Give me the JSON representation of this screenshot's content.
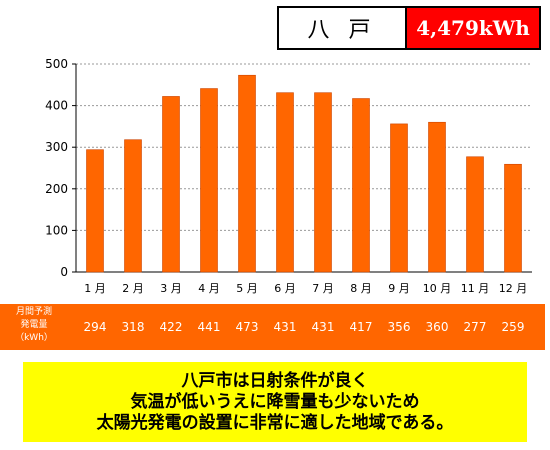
{
  "header": {
    "city": "八 戸",
    "total": "4,479kWh"
  },
  "chart_data": {
    "type": "bar",
    "categories": [
      "1 月",
      "2 月",
      "3 月",
      "4 月",
      "5 月",
      "6 月",
      "7 月",
      "8 月",
      "9 月",
      "10 月",
      "11 月",
      "12 月"
    ],
    "values": [
      294,
      318,
      422,
      441,
      473,
      431,
      431,
      417,
      356,
      360,
      277,
      259
    ],
    "ylim": [
      0,
      500
    ],
    "yticks": [
      0,
      100,
      200,
      300,
      400,
      500
    ],
    "grid": true,
    "bar_color": "#ff6600",
    "title": "",
    "xlabel": "",
    "ylabel": ""
  },
  "data_row": {
    "label_lines": [
      "月間予測",
      "発電量",
      "（kWh）"
    ],
    "values": [
      "294",
      "318",
      "422",
      "441",
      "473",
      "431",
      "431",
      "417",
      "356",
      "360",
      "277",
      "259"
    ]
  },
  "message": {
    "lines": [
      "八戸市は日射条件が良く",
      "気温が低いうえに降雪量も少ないため",
      "太陽光発電の設置に非常に適した地域である。"
    ]
  },
  "colors": {
    "accent_red": "#ff0000",
    "bar_orange": "#ff6600",
    "message_yellow": "#ffff00"
  }
}
